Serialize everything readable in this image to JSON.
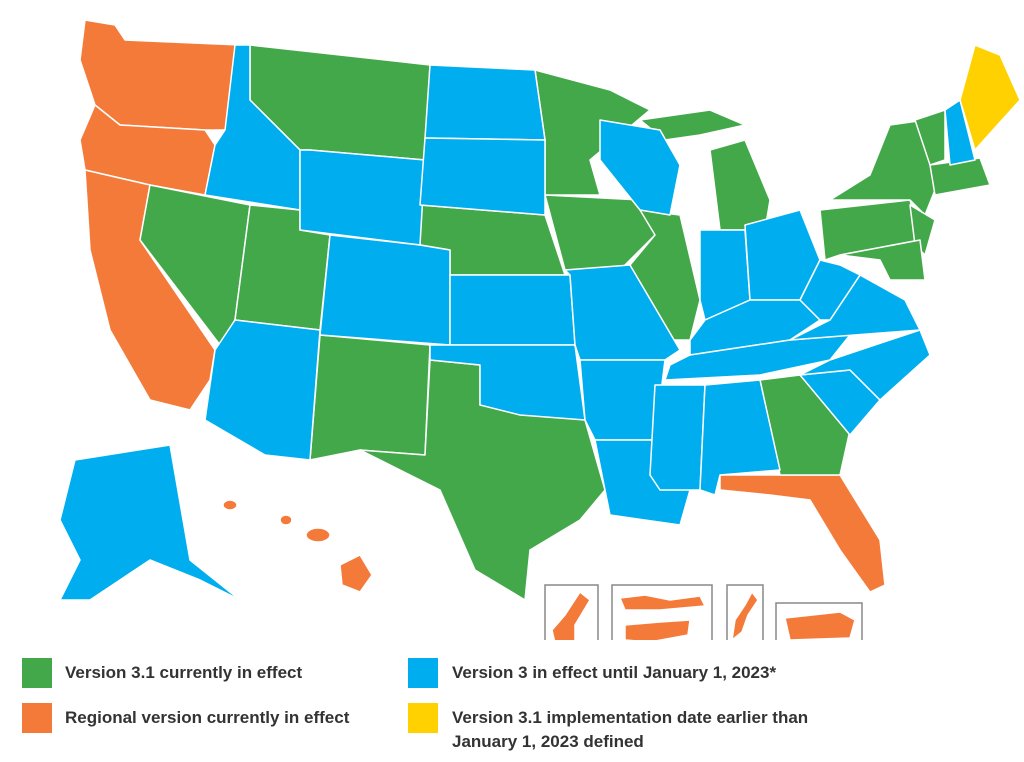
{
  "legend": [
    {
      "label": "Version 3.1 currently in effect",
      "color": "#43a84a"
    },
    {
      "label": "Regional version currently in effect",
      "color": "#f47a3a"
    },
    {
      "label": "Version 3 in effect until January 1, 2023*",
      "color": "#00aeef"
    },
    {
      "label": "Version 3.1 implementation date earlier than January 1, 2023 defined",
      "color": "#ffd100"
    }
  ]
}
